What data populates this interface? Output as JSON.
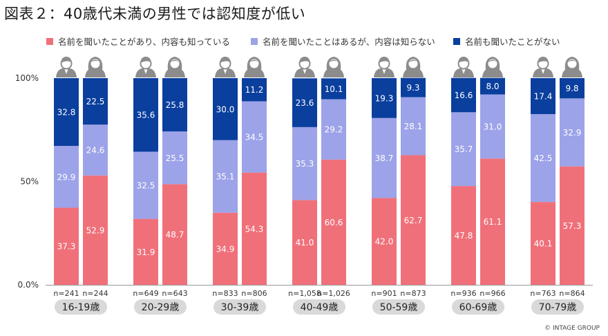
{
  "title": "図表２：40歳代未満の男性では認知度が低い",
  "copyright": "© INTAGE GROUP",
  "chart_data": {
    "type": "bar",
    "stacked": true,
    "percent_stacked": true,
    "ylim": [
      0,
      100
    ],
    "yticks": [
      "0.0%",
      "50%",
      "100%"
    ],
    "grid": false,
    "legend_position": "top",
    "series": [
      {
        "name": "名前を聞いたことがあり、内容も知っている",
        "color": "#f0707a",
        "values": [
          37.3,
          52.9,
          31.9,
          48.7,
          34.9,
          54.3,
          41.0,
          60.6,
          42.0,
          62.7,
          47.8,
          61.1,
          40.1,
          57.3
        ]
      },
      {
        "name": "名前を聞いたことはあるが、内容は知らない",
        "color": "#9da3e8",
        "values": [
          29.9,
          24.6,
          32.5,
          25.5,
          35.1,
          34.5,
          35.3,
          29.2,
          38.7,
          28.1,
          35.7,
          31.0,
          42.5,
          32.9
        ]
      },
      {
        "name": "名前も聞いたことがない",
        "color": "#0a3f9e",
        "values": [
          32.8,
          22.5,
          35.6,
          25.8,
          30.0,
          11.2,
          23.6,
          10.1,
          19.3,
          9.3,
          16.6,
          8.0,
          17.4,
          9.8
        ]
      }
    ],
    "bars": [
      {
        "gender": "male",
        "n": "n=241"
      },
      {
        "gender": "female",
        "n": "n=244"
      },
      {
        "gender": "male",
        "n": "n=649"
      },
      {
        "gender": "female",
        "n": "n=643"
      },
      {
        "gender": "male",
        "n": "n=833"
      },
      {
        "gender": "female",
        "n": "n=806"
      },
      {
        "gender": "male",
        "n": "n=1,058"
      },
      {
        "gender": "female",
        "n": "n=1,026"
      },
      {
        "gender": "male",
        "n": "n=901"
      },
      {
        "gender": "female",
        "n": "n=873"
      },
      {
        "gender": "male",
        "n": "n=936"
      },
      {
        "gender": "female",
        "n": "n=966"
      },
      {
        "gender": "male",
        "n": "n=763"
      },
      {
        "gender": "female",
        "n": "n=864"
      }
    ],
    "groups": [
      "16-19歳",
      "20-29歳",
      "30-39歳",
      "40-49歳",
      "50-59歳",
      "60-69歳",
      "70-79歳"
    ]
  }
}
